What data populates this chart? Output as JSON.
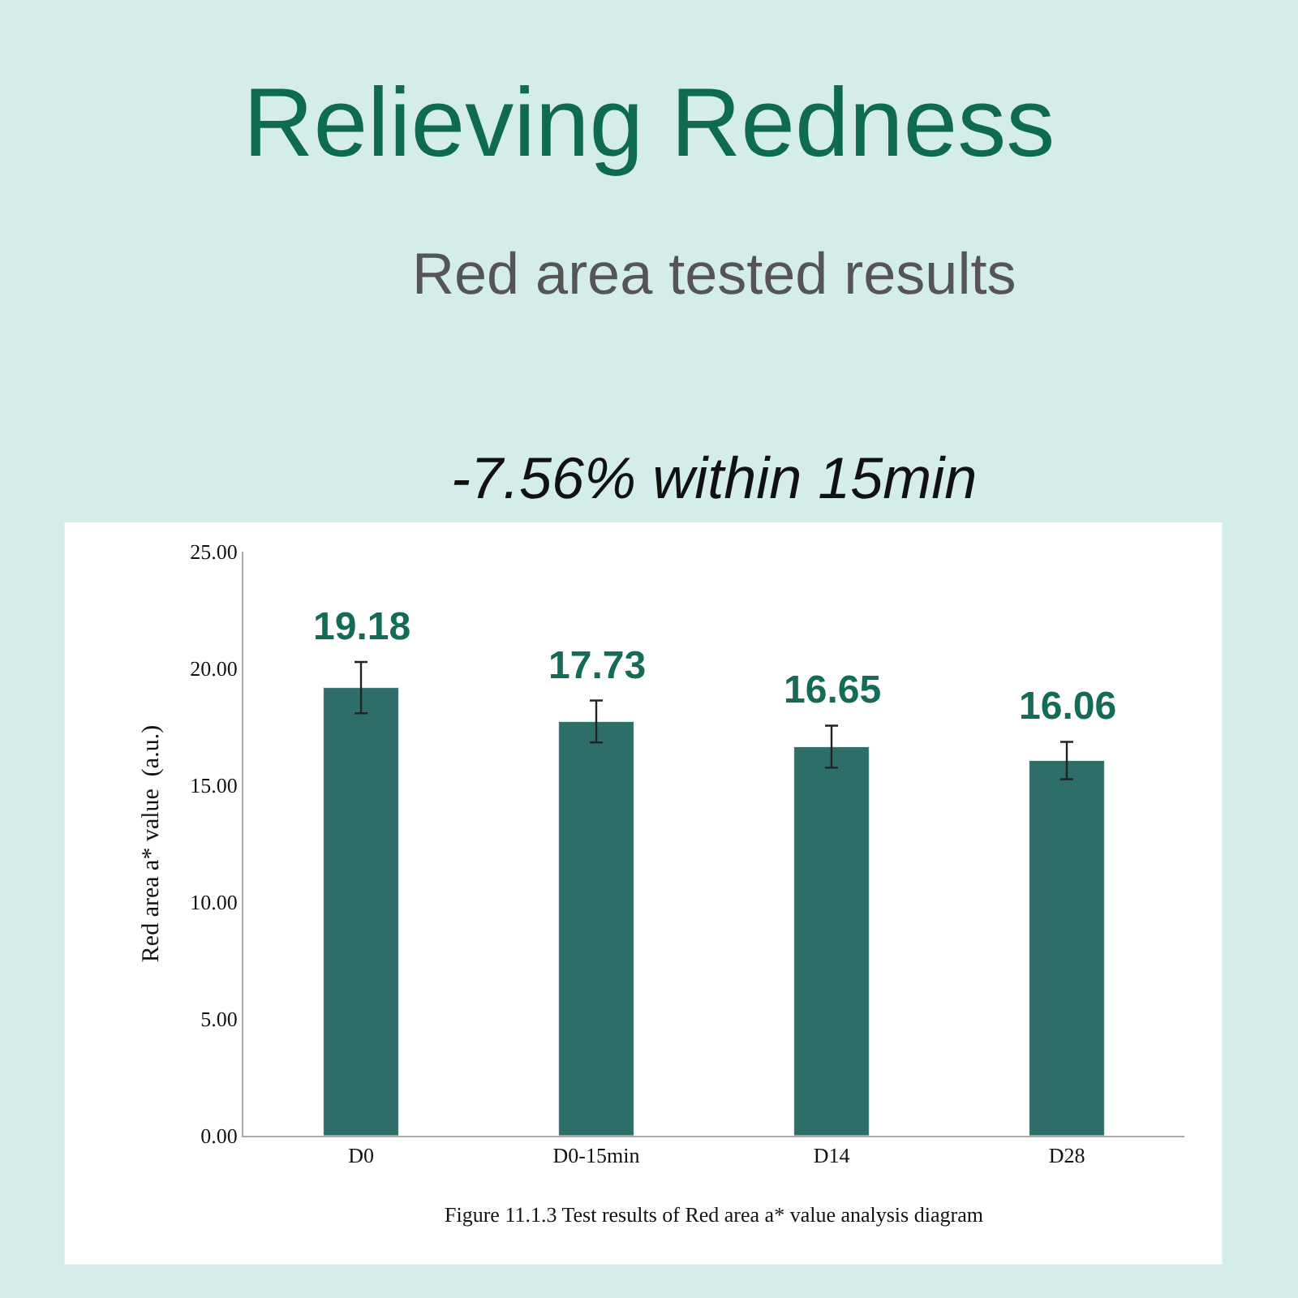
{
  "chart_data": {
    "type": "bar",
    "title": "Relieving Redness",
    "subtitle": "Red area tested results",
    "annotations": [
      "-7.56% within 15min",
      "Figure 11.1.3 Test results of Red area a* value analysis diagram"
    ],
    "ylabel": "Red area a* value  (a.u.)",
    "categories": [
      "D0",
      "D0-15min",
      "D14",
      "D28"
    ],
    "values": [
      19.18,
      17.73,
      16.65,
      16.06
    ],
    "errors": [
      1.1,
      0.9,
      0.9,
      0.8
    ],
    "color": "#2e6e68",
    "data_labels": true,
    "ylim": [
      0,
      25
    ],
    "yticks": [
      {
        "value": 0,
        "label": "0.00"
      },
      {
        "value": 5,
        "label": "5.00"
      },
      {
        "value": 10,
        "label": "10.00"
      },
      {
        "value": 15,
        "label": "15.00"
      },
      {
        "value": 20,
        "label": "20.00"
      },
      {
        "value": 25,
        "label": "25.00"
      }
    ],
    "legend": false
  }
}
